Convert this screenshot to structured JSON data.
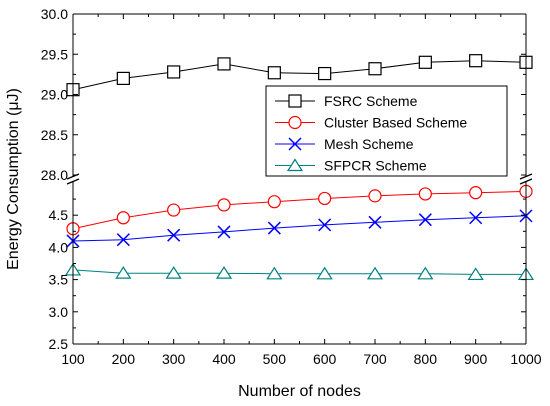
{
  "chart_data": {
    "type": "line",
    "title": "",
    "xlabel": "Number of nodes",
    "ylabel": "Energy Consumption (μJ)",
    "x": [
      100,
      200,
      300,
      400,
      500,
      600,
      700,
      800,
      900,
      1000
    ],
    "xlim": [
      100,
      1000
    ],
    "x_ticks": [
      "100",
      "200",
      "300",
      "400",
      "500",
      "600",
      "700",
      "800",
      "900",
      "1000"
    ],
    "y_axis_break": true,
    "ylim_lower": [
      2.5,
      5.0
    ],
    "ylim_upper": [
      28.0,
      30.0
    ],
    "y_ticks_lower": [
      "2.5",
      "3.0",
      "3.5",
      "4.0",
      "4.5"
    ],
    "y_ticks_upper": [
      "28.0",
      "28.5",
      "29.0",
      "29.5",
      "30.0"
    ],
    "grid": false,
    "legend_position": "right-middle",
    "series": [
      {
        "name": "FSRC Scheme",
        "marker": "square",
        "color": "#000000",
        "values": [
          29.06,
          29.2,
          29.28,
          29.38,
          29.27,
          29.26,
          29.32,
          29.4,
          29.42,
          29.4
        ]
      },
      {
        "name": "Cluster Based Scheme",
        "marker": "circle",
        "color": "#ff0000",
        "values": [
          4.29,
          4.46,
          4.58,
          4.66,
          4.71,
          4.76,
          4.8,
          4.83,
          4.85,
          4.87
        ]
      },
      {
        "name": "Mesh Scheme",
        "marker": "cross",
        "color": "#0000ff",
        "values": [
          4.1,
          4.12,
          4.19,
          4.24,
          4.3,
          4.35,
          4.39,
          4.43,
          4.46,
          4.49
        ]
      },
      {
        "name": "SFPCR Scheme",
        "marker": "triangle",
        "color": "#008080",
        "values": [
          3.65,
          3.6,
          3.6,
          3.6,
          3.59,
          3.59,
          3.59,
          3.59,
          3.58,
          3.58
        ]
      }
    ]
  }
}
